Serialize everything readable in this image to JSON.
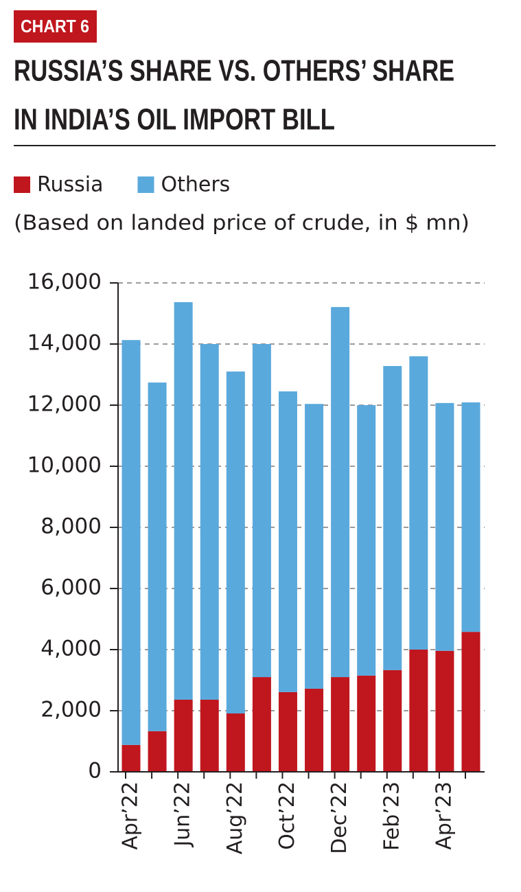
{
  "chart_data": {
    "type": "bar",
    "stacked": true,
    "tag": "CHART 6",
    "title_lines": [
      "RUSSIA’S SHARE VS. OTHERS’ SHARE",
      "IN INDIA’S OIL IMPORT BILL"
    ],
    "subtitle": "(Based on landed price of crude, in $ mn)",
    "categories": [
      "Apr’22",
      null,
      "Jun’22",
      null,
      "Aug’22",
      null,
      "Oct’22",
      null,
      "Dec’22",
      null,
      "Feb’23",
      null,
      "Apr’23",
      null
    ],
    "series": [
      {
        "name": "Russia",
        "color": "#c0161e",
        "values": [
          880,
          1330,
          2360,
          2360,
          1910,
          3100,
          2610,
          2720,
          3100,
          3150,
          3330,
          4000,
          3960,
          4580
        ]
      },
      {
        "name": "Others",
        "color": "#5aa9dc",
        "values": [
          13250,
          11410,
          13010,
          11640,
          11190,
          10900,
          9840,
          9320,
          12110,
          8850,
          9950,
          9600,
          8110,
          7510
        ]
      }
    ],
    "ylim": [
      0,
      16000
    ],
    "yticks": [
      0,
      {
        "value": 2000,
        "label": "2,000"
      },
      {
        "value": 4000,
        "label": "4,000"
      },
      {
        "value": 6000,
        "label": "6,000"
      },
      {
        "value": 8000,
        "label": "8,000"
      },
      {
        "value": 10000,
        "label": "10,000"
      },
      {
        "value": 12000,
        "label": "12,000"
      },
      {
        "value": 14000,
        "label": "14,000"
      },
      {
        "value": 16000,
        "label": "16,000"
      }
    ],
    "grid": true
  }
}
